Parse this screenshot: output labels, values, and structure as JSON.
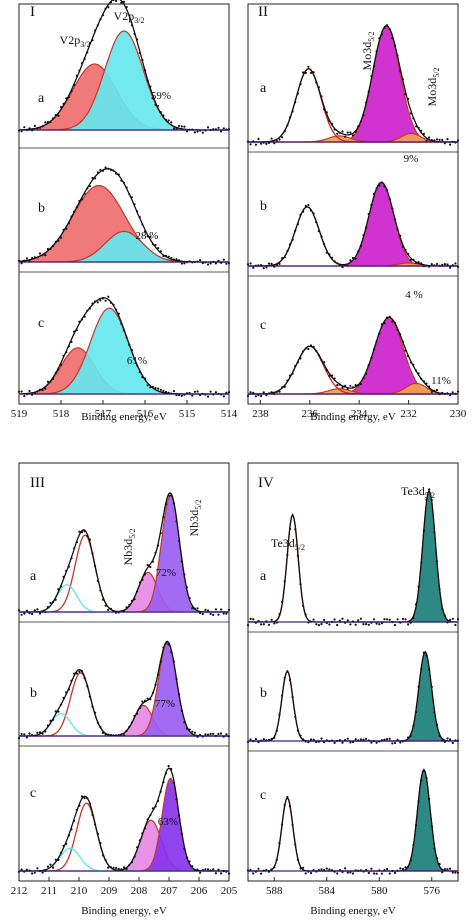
{
  "chart_data": [
    {
      "panel": "I",
      "type": "line",
      "xlabel": "Binding energy, eV",
      "xlim": [
        519,
        514
      ],
      "x_ticks": [
        519,
        518,
        517,
        516,
        515,
        514
      ],
      "x_tick_labels": [
        "519",
        "518",
        "517",
        "516",
        "515",
        "514"
      ],
      "peak_labels": [
        "V2p3/2",
        "V2p3/2"
      ],
      "subplots": [
        {
          "label": "a",
          "series": [
            {
              "type": "fill",
              "color": "#ef6f6f",
              "center": 517.2,
              "amp": 0.6,
              "width": 0.52
            },
            {
              "type": "fill",
              "color": "#66e6ee",
              "center": 516.5,
              "amp": 0.9,
              "width": 0.46
            },
            {
              "type": "envelope",
              "color": "#111111",
              "comps": [
                [
                  517.2,
                  0.6,
                  0.52
                ],
                [
                  516.5,
                  0.9,
                  0.46
                ]
              ]
            }
          ],
          "annotations": [
            "59%"
          ]
        },
        {
          "label": "b",
          "series": [
            {
              "type": "fill",
              "color": "#ef6f6f",
              "center": 517.1,
              "amp": 0.75,
              "width": 0.62
            },
            {
              "type": "fill",
              "color": "#66e6ee",
              "center": 516.5,
              "amp": 0.3,
              "width": 0.45
            },
            {
              "type": "envelope",
              "color": "#111111",
              "comps": [
                [
                  517.1,
                  0.75,
                  0.62
                ],
                [
                  516.5,
                  0.3,
                  0.45
                ]
              ]
            }
          ],
          "annotations": [
            "28 %"
          ]
        },
        {
          "label": "c",
          "series": [
            {
              "type": "fill",
              "color": "#ef6f6f",
              "center": 517.6,
              "amp": 0.42,
              "width": 0.4
            },
            {
              "type": "fill",
              "color": "#66e6ee",
              "center": 516.85,
              "amp": 0.78,
              "width": 0.45
            },
            {
              "type": "envelope",
              "color": "#111111",
              "comps": [
                [
                  517.6,
                  0.42,
                  0.4
                ],
                [
                  516.85,
                  0.78,
                  0.45
                ]
              ]
            }
          ],
          "annotations": [
            "61%"
          ]
        }
      ]
    },
    {
      "panel": "II",
      "type": "line",
      "xlabel": "Binding energy, eV",
      "xlim": [
        238.5,
        230
      ],
      "x_ticks": [
        238,
        236,
        234,
        232,
        230
      ],
      "x_tick_labels": [
        "238",
        "236",
        "234",
        "232",
        "230"
      ],
      "peak_labels": [
        "Mo3d5/2",
        "Mo3d5/2"
      ],
      "subplots": [
        {
          "label": "a",
          "series": [
            {
              "type": "outline",
              "color": "#cc2222",
              "center": 236.05,
              "amp": 0.6,
              "width": 0.5
            },
            {
              "type": "fill",
              "color": "#cc22cc",
              "center": 232.9,
              "amp": 0.95,
              "width": 0.55
            },
            {
              "type": "fill",
              "color": "#f0a050",
              "center": 234.8,
              "amp": 0.05,
              "width": 0.45
            },
            {
              "type": "fill",
              "color": "#f0a050",
              "center": 231.9,
              "amp": 0.07,
              "width": 0.4
            },
            {
              "type": "envelope",
              "color": "#111111",
              "comps": [
                [
                  236.05,
                  0.6,
                  0.5
                ],
                [
                  232.9,
                  0.95,
                  0.55
                ],
                [
                  234.8,
                  0.05,
                  0.45
                ],
                [
                  231.9,
                  0.07,
                  0.4
                ]
              ]
            }
          ],
          "annotations": [
            "9%"
          ]
        },
        {
          "label": "b",
          "series": [
            {
              "type": "outline",
              "color": "#cc2222",
              "center": 236.1,
              "amp": 0.58,
              "width": 0.48
            },
            {
              "type": "fill",
              "color": "#cc22cc",
              "center": 233.1,
              "amp": 0.82,
              "width": 0.5
            },
            {
              "type": "fill",
              "color": "#f0a050",
              "center": 232.0,
              "amp": 0.03,
              "width": 0.4
            },
            {
              "type": "envelope",
              "color": "#111111",
              "comps": [
                [
                  236.1,
                  0.58,
                  0.48
                ],
                [
                  233.1,
                  0.82,
                  0.5
                ],
                [
                  232.0,
                  0.03,
                  0.4
                ]
              ]
            }
          ],
          "annotations": [
            "4 %"
          ]
        },
        {
          "label": "c",
          "series": [
            {
              "type": "outline",
              "color": "#cc2222",
              "center": 236.0,
              "amp": 0.45,
              "width": 0.55
            },
            {
              "type": "fill",
              "color": "#cc22cc",
              "center": 232.8,
              "amp": 0.72,
              "width": 0.58
            },
            {
              "type": "fill",
              "color": "#f0a050",
              "center": 234.8,
              "amp": 0.05,
              "width": 0.45
            },
            {
              "type": "fill",
              "color": "#f0a050",
              "center": 231.7,
              "amp": 0.1,
              "width": 0.42
            },
            {
              "type": "envelope",
              "color": "#111111",
              "comps": [
                [
                  236.0,
                  0.45,
                  0.55
                ],
                [
                  232.8,
                  0.72,
                  0.58
                ],
                [
                  234.8,
                  0.05,
                  0.45
                ],
                [
                  231.7,
                  0.1,
                  0.42
                ]
              ]
            }
          ],
          "annotations": [
            "11%"
          ]
        }
      ]
    },
    {
      "panel": "III",
      "type": "line",
      "xlabel": "Binding energy, eV",
      "xlim": [
        212,
        205
      ],
      "x_ticks": [
        212,
        211,
        210,
        209,
        208,
        207,
        206,
        205
      ],
      "x_tick_labels": [
        "212",
        "211",
        "210",
        "209",
        "208",
        "207",
        "206",
        "205"
      ],
      "peak_labels": [
        "Nb3d5/2",
        "Nb3d5/2"
      ],
      "subplots": [
        {
          "label": "a",
          "series": [
            {
              "type": "outline",
              "color": "#c0392b",
              "center": 209.8,
              "amp": 0.62,
              "width": 0.33
            },
            {
              "type": "outline",
              "color": "#5fe4ee",
              "center": 210.4,
              "amp": 0.22,
              "width": 0.32
            },
            {
              "type": "fill",
              "color": "#e68ae6",
              "center": 207.7,
              "amp": 0.32,
              "width": 0.32
            },
            {
              "type": "fill",
              "color": "#9b5ef0",
              "center": 206.95,
              "amp": 0.94,
              "width": 0.3
            },
            {
              "type": "envelope",
              "color": "#111111",
              "comps": [
                [
                  209.8,
                  0.62,
                  0.33
                ],
                [
                  210.4,
                  0.22,
                  0.32
                ],
                [
                  207.7,
                  0.32,
                  0.32
                ],
                [
                  206.95,
                  0.94,
                  0.3
                ]
              ]
            }
          ],
          "annotations": [
            "72%"
          ]
        },
        {
          "label": "b",
          "series": [
            {
              "type": "outline",
              "color": "#c0392b",
              "center": 209.95,
              "amp": 0.62,
              "width": 0.33
            },
            {
              "type": "outline",
              "color": "#5fe4ee",
              "center": 210.6,
              "amp": 0.22,
              "width": 0.32
            },
            {
              "type": "fill",
              "color": "#e68ae6",
              "center": 207.85,
              "amp": 0.3,
              "width": 0.3
            },
            {
              "type": "fill",
              "color": "#9b5ef0",
              "center": 207.05,
              "amp": 0.92,
              "width": 0.3
            },
            {
              "type": "envelope",
              "color": "#111111",
              "comps": [
                [
                  209.95,
                  0.62,
                  0.33
                ],
                [
                  210.6,
                  0.22,
                  0.32
                ],
                [
                  207.85,
                  0.3,
                  0.3
                ],
                [
                  207.05,
                  0.92,
                  0.3
                ]
              ]
            }
          ],
          "annotations": [
            "77%"
          ]
        },
        {
          "label": "c",
          "series": [
            {
              "type": "outline",
              "color": "#c0392b",
              "center": 209.75,
              "amp": 0.6,
              "width": 0.33
            },
            {
              "type": "outline",
              "color": "#5fe4ee",
              "center": 210.3,
              "amp": 0.2,
              "width": 0.34
            },
            {
              "type": "fill",
              "color": "#e68ae6",
              "center": 207.6,
              "amp": 0.45,
              "width": 0.35
            },
            {
              "type": "fill",
              "color": "#8833ee",
              "center": 206.95,
              "amp": 0.82,
              "width": 0.28
            },
            {
              "type": "envelope",
              "color": "#111111",
              "comps": [
                [
                  209.75,
                  0.6,
                  0.33
                ],
                [
                  210.3,
                  0.2,
                  0.34
                ],
                [
                  207.6,
                  0.45,
                  0.35
                ],
                [
                  206.95,
                  0.82,
                  0.28
                ]
              ]
            }
          ],
          "annotations": [
            "63%"
          ]
        }
      ]
    },
    {
      "panel": "IV",
      "type": "line",
      "xlabel": "Binding energy, eV",
      "xlim": [
        590,
        574
      ],
      "x_ticks": [
        588,
        584,
        580,
        576
      ],
      "x_tick_labels": [
        "588",
        "584",
        "580",
        "576"
      ],
      "peak_labels": [
        "Te3d5/2",
        "Te3d5/2"
      ],
      "subplots": [
        {
          "label": "a",
          "series": [
            {
              "type": "outline",
              "color": "#cc2222",
              "center": 586.6,
              "amp": 0.8,
              "width": 0.42
            },
            {
              "type": "fill",
              "color": "#1b7f7a",
              "center": 576.2,
              "amp": 0.98,
              "width": 0.48
            },
            {
              "type": "envelope",
              "color": "#111111",
              "comps": [
                [
                  586.6,
                  0.8,
                  0.42
                ],
                [
                  576.2,
                  0.98,
                  0.48
                ]
              ]
            }
          ],
          "annotations": []
        },
        {
          "label": "b",
          "series": [
            {
              "type": "outline",
              "color": "#cc2222",
              "center": 587.0,
              "amp": 0.72,
              "width": 0.42
            },
            {
              "type": "fill",
              "color": "#1b7f7a",
              "center": 576.5,
              "amp": 0.92,
              "width": 0.48
            },
            {
              "type": "envelope",
              "color": "#111111",
              "comps": [
                [
                  587.0,
                  0.72,
                  0.42
                ],
                [
                  576.5,
                  0.92,
                  0.48
                ]
              ]
            }
          ],
          "annotations": []
        },
        {
          "label": "c",
          "series": [
            {
              "type": "outline",
              "color": "#cc2222",
              "center": 587.0,
              "amp": 0.68,
              "width": 0.42
            },
            {
              "type": "fill",
              "color": "#1b7f7a",
              "center": 576.6,
              "amp": 0.94,
              "width": 0.48
            },
            {
              "type": "envelope",
              "color": "#111111",
              "comps": [
                [
                  587.0,
                  0.68,
                  0.42
                ],
                [
                  576.6,
                  0.94,
                  0.48
                ]
              ]
            }
          ],
          "annotations": []
        }
      ]
    }
  ]
}
